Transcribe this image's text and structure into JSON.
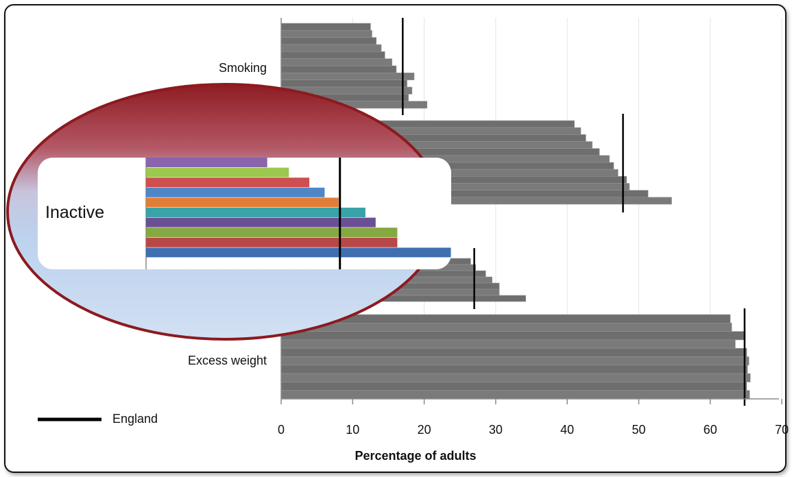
{
  "chart_data": [
    {
      "type": "bar",
      "orientation": "horizontal",
      "title": "",
      "xlabel": "Percentage of adults",
      "ylabel": "",
      "xlim": [
        0,
        70
      ],
      "xticks": [
        "0",
        "10",
        "20",
        "30",
        "40",
        "50",
        "60",
        "70"
      ],
      "grid": true,
      "legend": {
        "position": "bottom-left",
        "entries": [
          {
            "label": "England",
            "color": "#000000"
          }
        ]
      },
      "groups": [
        {
          "label": "Smoking",
          "values": [
            12.5,
            12.7,
            13.3,
            14.0,
            14.5,
            15.5,
            16.1,
            18.6,
            17.6,
            18.3,
            17.8,
            20.4
          ],
          "england": 17.0
        },
        {
          "label": "",
          "values": [
            41.0,
            41.9,
            42.6,
            43.5,
            44.5,
            45.9,
            46.5,
            47.1,
            48.3,
            48.7,
            51.3,
            54.6
          ],
          "england": 47.8
        },
        {
          "label": "",
          "values": [
            26.5,
            27.2,
            28.6,
            29.5,
            30.5,
            30.5,
            34.2
          ],
          "england": 27.0
        },
        {
          "label": "Excess weight",
          "values": [
            62.8,
            63.0,
            64.9,
            63.5,
            65.1,
            65.4,
            65.2,
            65.6,
            65.1,
            65.5
          ],
          "england": 64.8
        }
      ],
      "bar_color": "#777777"
    },
    {
      "type": "bar",
      "orientation": "horizontal",
      "title": "",
      "callout": true,
      "groups": [
        {
          "label": "Inactive",
          "values": [
            9.5,
            11.2,
            12.8,
            14.0,
            15.1,
            17.2,
            18.0,
            19.7,
            19.7,
            23.9
          ],
          "colors": [
            "#8a64ad",
            "#9cc84f",
            "#cd4f4f",
            "#4f86c6",
            "#e07e38",
            "#3aa3a8",
            "#6b4f94",
            "#86a843",
            "#b84848",
            "#3f6fb0"
          ],
          "england": 15.2
        }
      ]
    }
  ]
}
